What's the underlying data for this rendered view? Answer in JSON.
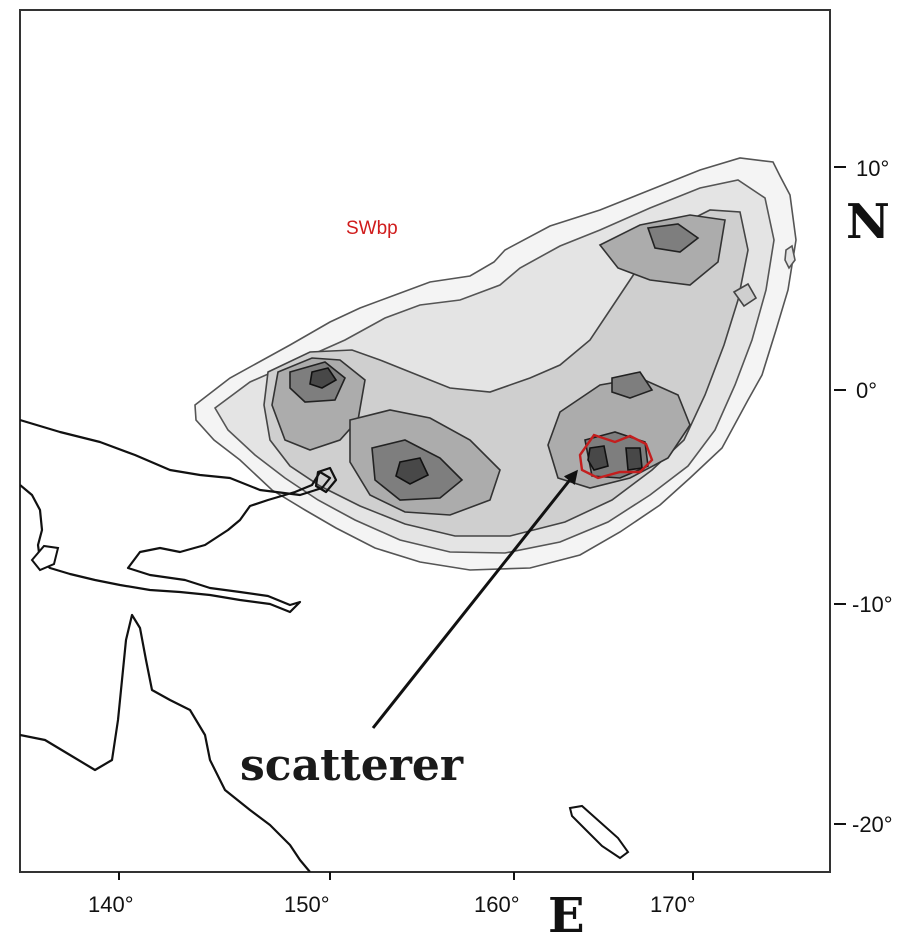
{
  "map": {
    "x_ticks": [
      "140°",
      "150°",
      "160°",
      "170°"
    ],
    "y_ticks": [
      "10°",
      "0°",
      "-10°",
      "-20°"
    ],
    "x_axis_letter": "E",
    "y_axis_letter": "N",
    "region_label": "SWbp",
    "annotation": "scatterer",
    "highlight_color": "#c41e1e",
    "shading": "grey filled contours",
    "coastlines": [
      "New Guinea",
      "Australia (Queensland)",
      "New Caledonia"
    ]
  }
}
